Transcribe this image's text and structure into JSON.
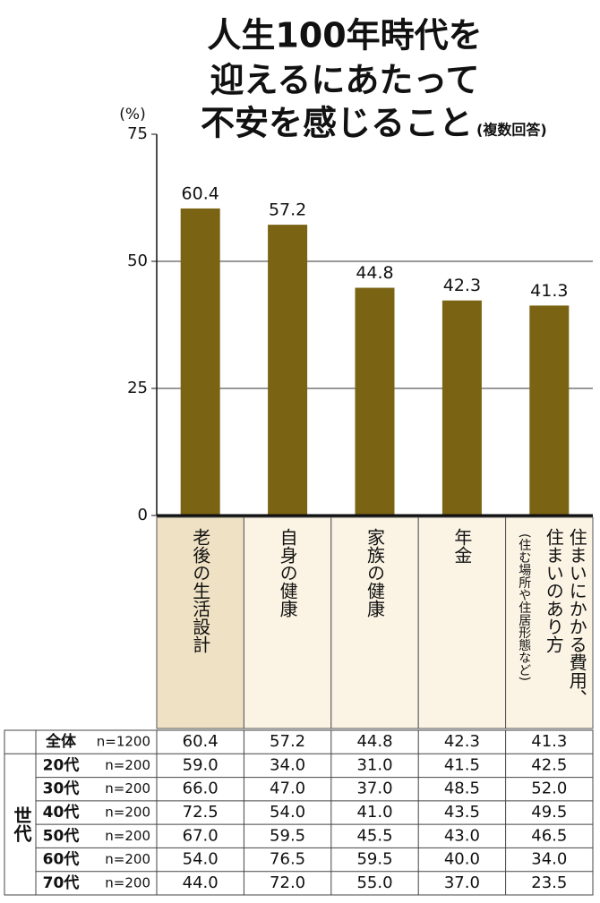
{
  "chart_data": {
    "type": "bar",
    "title": [
      "人生100年時代を",
      "迎えるにあたって",
      "不安を感じること"
    ],
    "subtitle": "(複数回答)",
    "y_label": "(%)",
    "categories": [
      "老後の生活設計",
      "自身の健康",
      "家族の健康",
      "年金",
      "住まいにかかる費用、住まいのあり方"
    ],
    "category_note": "(住む場所や住居形態など)",
    "values": [
      60.4,
      57.2,
      44.8,
      42.3,
      41.3
    ],
    "color": "#7a6414",
    "ylim": [
      0,
      75
    ],
    "yticks": [
      0,
      25,
      50,
      75
    ],
    "grid": true
  },
  "table": {
    "group_label": "世代",
    "rows": [
      {
        "label": "全体",
        "n": "n=1200",
        "values": [
          "60.4",
          "57.2",
          "44.8",
          "42.3",
          "41.3"
        ]
      },
      {
        "label": "20代",
        "n": "n=200",
        "values": [
          "59.0",
          "34.0",
          "31.0",
          "41.5",
          "42.5"
        ]
      },
      {
        "label": "30代",
        "n": "n=200",
        "values": [
          "66.0",
          "47.0",
          "37.0",
          "48.5",
          "52.0"
        ]
      },
      {
        "label": "40代",
        "n": "n=200",
        "values": [
          "72.5",
          "54.0",
          "41.0",
          "43.5",
          "49.5"
        ]
      },
      {
        "label": "50代",
        "n": "n=200",
        "values": [
          "67.0",
          "59.5",
          "45.5",
          "43.0",
          "46.5"
        ]
      },
      {
        "label": "60代",
        "n": "n=200",
        "values": [
          "54.0",
          "76.5",
          "59.5",
          "40.0",
          "34.0"
        ]
      },
      {
        "label": "70代",
        "n": "n=200",
        "values": [
          "44.0",
          "72.0",
          "55.0",
          "37.0",
          "23.5"
        ]
      }
    ]
  }
}
